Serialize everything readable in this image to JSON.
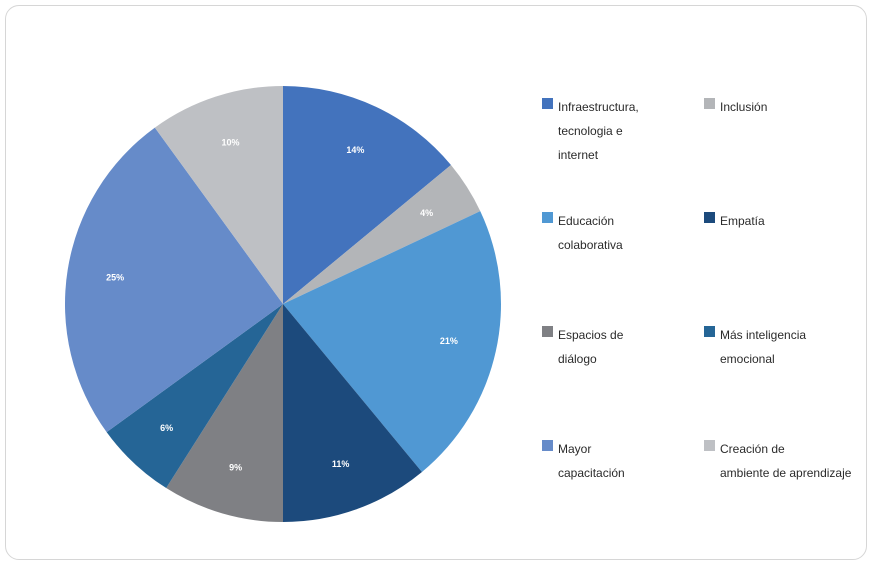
{
  "chart_data": {
    "type": "pie",
    "slices": [
      {
        "label": "Infraestructura,\ntecnologia e\ninternet",
        "value": 14,
        "value_label": "14%",
        "color": "#4373BD"
      },
      {
        "label": "Inclusión",
        "value": 4,
        "value_label": "4%",
        "color": "#B3B5B8"
      },
      {
        "label": "Educación\ncolaborativa",
        "value": 21,
        "value_label": "21%",
        "color": "#5098D3"
      },
      {
        "label": "Empatía",
        "value": 11,
        "value_label": "11%",
        "color": "#1C4A7C"
      },
      {
        "label": "Espacios de\ndiálogo",
        "value": 9,
        "value_label": "9%",
        "color": "#7F8084"
      },
      {
        "label": "Más inteligencia\nemocional",
        "value": 6,
        "value_label": "6%",
        "color": "#256596"
      },
      {
        "label": "Mayor\ncapacitación",
        "value": 25,
        "value_label": "25%",
        "color": "#668BC9"
      },
      {
        "label": "Creación de\nambiente de aprendizaje",
        "value": 10,
        "value_label": "10%",
        "color": "#BEC0C4"
      }
    ],
    "legend_placement": "right",
    "label_color": "#ffffff"
  }
}
